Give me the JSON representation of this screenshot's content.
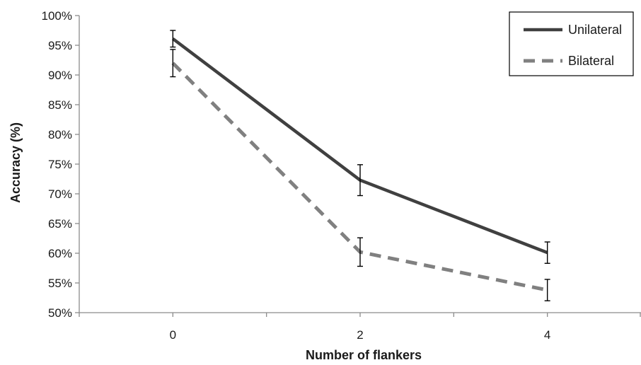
{
  "chart_data": {
    "type": "line",
    "title": "",
    "xlabel": "Number of flankers",
    "ylabel": "Accuracy (%)",
    "categories": [
      "0",
      "2",
      "4"
    ],
    "x": [
      0,
      2,
      4
    ],
    "xlim": [
      -1,
      5
    ],
    "ylim": [
      50,
      100
    ],
    "yticks": [
      50,
      55,
      60,
      65,
      70,
      75,
      80,
      85,
      90,
      95,
      100
    ],
    "ytick_labels": [
      "50%",
      "55%",
      "60%",
      "65%",
      "70%",
      "75%",
      "80%",
      "85%",
      "90%",
      "95%",
      "100%"
    ],
    "grid": false,
    "legend_position": "top-right",
    "series": [
      {
        "name": "Unilateral",
        "values": [
          96.1,
          72.3,
          60.1
        ],
        "error": [
          1.4,
          2.6,
          1.8
        ],
        "color": "#404040",
        "style": "solid"
      },
      {
        "name": "Bilateral",
        "values": [
          92.0,
          60.2,
          53.8
        ],
        "error": [
          2.3,
          2.4,
          1.8
        ],
        "color": "#808080",
        "style": "dashed"
      }
    ]
  }
}
